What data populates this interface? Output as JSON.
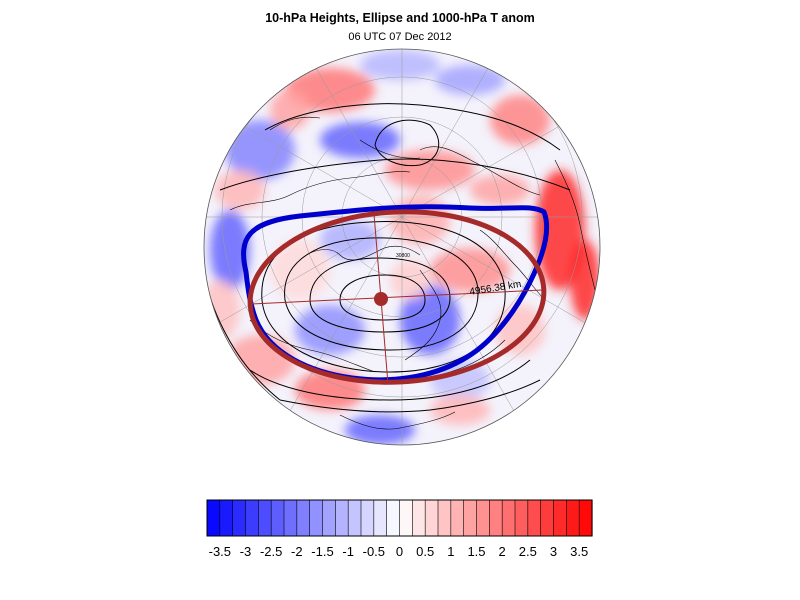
{
  "figure": {
    "title": "10-hPa Heights, Ellipse and 1000-hPa T anom",
    "subtitle": "06 UTC 07 Dec 2012"
  },
  "map": {
    "projection": "orthographic-north-polar",
    "field": "1000-hPa T anom (filled)",
    "contours": "10-hPa Heights",
    "ellipse_label": "4956.38 km",
    "contour_label": "30800",
    "colors": {
      "ellipse": "#a52a2a",
      "outer_contour": "#0000cc",
      "contour_line": "#000000",
      "coastline": "#000000"
    }
  },
  "colorbar": {
    "tick_labels": [
      "-3.5",
      "-3",
      "-2.5",
      "-2",
      "-1.5",
      "-1",
      "-0.5",
      "0",
      "0.5",
      "1",
      "1.5",
      "2",
      "2.5",
      "3",
      "3.5"
    ],
    "tick_values": [
      -3.5,
      -3,
      -2.5,
      -2,
      -1.5,
      -1,
      -0.5,
      0,
      0.5,
      1,
      1.5,
      2,
      2.5,
      3,
      3.5
    ],
    "range": [
      -3.75,
      3.75
    ],
    "step": 0.25,
    "cold_color": "#0000ff",
    "mid_color": "#ffffff",
    "warm_color": "#ff0000"
  }
}
